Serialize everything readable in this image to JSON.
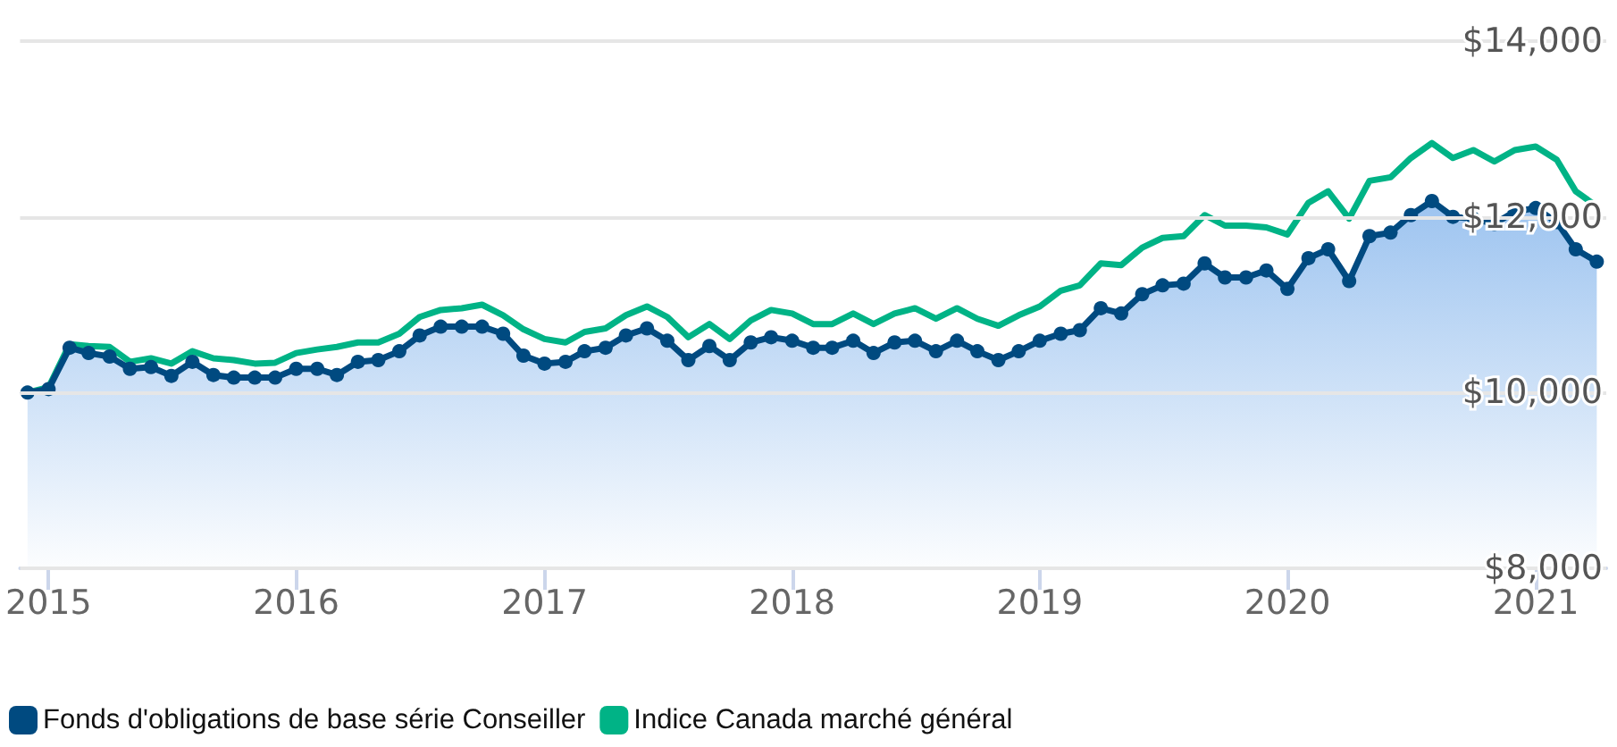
{
  "chart_data": {
    "type": "line",
    "x": [
      "2014-12",
      "2015-01",
      "2015-02",
      "2015-03",
      "2015-04",
      "2015-05",
      "2015-06",
      "2015-07",
      "2015-08",
      "2015-09",
      "2015-10",
      "2015-11",
      "2015-12",
      "2016-01",
      "2016-02",
      "2016-03",
      "2016-04",
      "2016-05",
      "2016-06",
      "2016-07",
      "2016-08",
      "2016-09",
      "2016-10",
      "2016-11",
      "2016-12",
      "2017-01",
      "2017-02",
      "2017-03",
      "2017-04",
      "2017-05",
      "2017-06",
      "2017-07",
      "2017-08",
      "2017-09",
      "2017-10",
      "2017-11",
      "2017-12",
      "2018-01",
      "2018-02",
      "2018-03",
      "2018-04",
      "2018-05",
      "2018-06",
      "2018-07",
      "2018-08",
      "2018-09",
      "2018-10",
      "2018-11",
      "2018-12",
      "2019-01",
      "2019-02",
      "2019-03",
      "2019-04",
      "2019-05",
      "2019-06",
      "2019-07",
      "2019-08",
      "2019-09",
      "2019-10",
      "2019-11",
      "2019-12",
      "2020-01",
      "2020-02",
      "2020-03",
      "2020-04",
      "2020-05",
      "2020-06",
      "2020-07",
      "2020-08",
      "2020-09",
      "2020-10",
      "2020-11",
      "2020-12",
      "2021-01",
      "2021-02",
      "2021-03",
      "2021-04"
    ],
    "series": [
      {
        "name": "Fonds d'obligations de base série Conseiller",
        "type": "area",
        "marker": "circle",
        "color": "#004a80",
        "values": [
          10000,
          10040,
          10510,
          10450,
          10410,
          10270,
          10290,
          10190,
          10350,
          10200,
          10170,
          10170,
          10170,
          10270,
          10270,
          10200,
          10350,
          10370,
          10470,
          10650,
          10750,
          10750,
          10750,
          10670,
          10420,
          10330,
          10350,
          10470,
          10510,
          10650,
          10730,
          10590,
          10370,
          10530,
          10370,
          10570,
          10630,
          10590,
          10510,
          10510,
          10590,
          10450,
          10570,
          10590,
          10470,
          10590,
          10470,
          10370,
          10470,
          10590,
          10670,
          10710,
          10960,
          10900,
          11120,
          11220,
          11240,
          11470,
          11310,
          11310,
          11390,
          11180,
          11530,
          11630,
          11270,
          11780,
          11820,
          12020,
          12180,
          12000,
          11980,
          11920,
          12060,
          12100,
          11940,
          11630,
          11490
        ]
      },
      {
        "name": "Indice Canada marché général",
        "marker": "none",
        "color": "#00b386",
        "values": [
          10000,
          10060,
          10550,
          10530,
          10520,
          10350,
          10390,
          10330,
          10470,
          10390,
          10370,
          10330,
          10340,
          10450,
          10490,
          10520,
          10570,
          10570,
          10670,
          10860,
          10940,
          10960,
          11000,
          10880,
          10720,
          10610,
          10570,
          10690,
          10730,
          10880,
          10980,
          10860,
          10630,
          10780,
          10610,
          10820,
          10940,
          10900,
          10780,
          10780,
          10900,
          10780,
          10900,
          10960,
          10840,
          10960,
          10840,
          10760,
          10880,
          10980,
          11160,
          11220,
          11470,
          11450,
          11650,
          11760,
          11780,
          12020,
          11900,
          11900,
          11880,
          11800,
          12160,
          12290,
          11980,
          12410,
          12450,
          12670,
          12840,
          12670,
          12760,
          12630,
          12760,
          12800,
          12650,
          12290,
          12120
        ]
      }
    ],
    "xlim": [
      "2014-11-20",
      "2021-04-15"
    ],
    "xticks": [
      "2015",
      "2016",
      "2017",
      "2018",
      "2019",
      "2020",
      "2021"
    ],
    "ylim": [
      8000,
      14000
    ],
    "yticks": [
      {
        "value": 8000,
        "label": "$8,000"
      },
      {
        "value": 10000,
        "label": "$10,000"
      },
      {
        "value": 12000,
        "label": "$12,000"
      },
      {
        "value": 14000,
        "label": "$14,000"
      }
    ],
    "grid": "y",
    "legend": "bottom left"
  }
}
